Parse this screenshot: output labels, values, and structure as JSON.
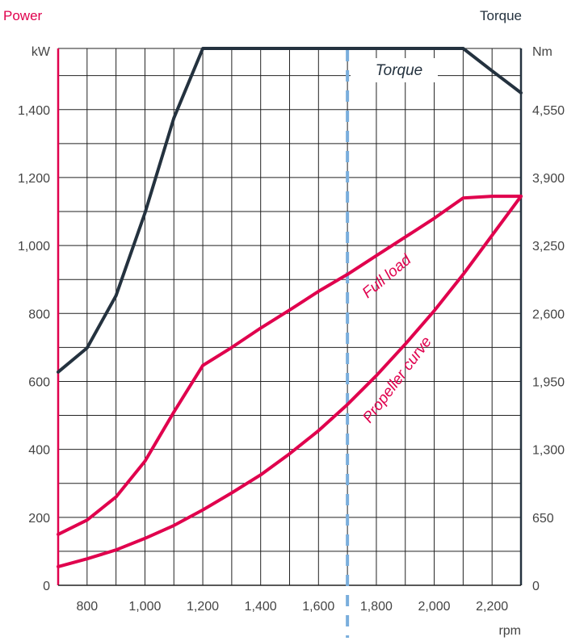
{
  "colors": {
    "power": "#e0004d",
    "torque": "#24323f",
    "marker": "#7aaedc",
    "grid": "#222222",
    "text": "#444444"
  },
  "headers": {
    "left": "Power",
    "right": "Torque",
    "left_unit": "kW",
    "right_unit": "Nm",
    "x_unit": "rpm"
  },
  "chart_data": {
    "type": "line",
    "xlim": [
      700,
      2300
    ],
    "ylim_left": [
      0,
      1580
    ],
    "ylim_right": [
      0,
      5135
    ],
    "grid": true,
    "x_ticks": [
      {
        "value": 800,
        "label": "800"
      },
      {
        "value": 1000,
        "label": "1,000"
      },
      {
        "value": 1200,
        "label": "1,200"
      },
      {
        "value": 1400,
        "label": "1,400"
      },
      {
        "value": 1600,
        "label": "1,600"
      },
      {
        "value": 1800,
        "label": "1,800"
      },
      {
        "value": 2000,
        "label": "2,000"
      },
      {
        "value": 2200,
        "label": "2,200"
      }
    ],
    "y_left_ticks": [
      {
        "value": 0,
        "label": "0"
      },
      {
        "value": 200,
        "label": "200"
      },
      {
        "value": 400,
        "label": "400"
      },
      {
        "value": 600,
        "label": "600"
      },
      {
        "value": 800,
        "label": "800"
      },
      {
        "value": 1000,
        "label": "1,000"
      },
      {
        "value": 1200,
        "label": "1,200"
      },
      {
        "value": 1400,
        "label": "1,400"
      }
    ],
    "y_right_ticks": [
      {
        "value": 0,
        "label": "0"
      },
      {
        "value": 650,
        "label": "650"
      },
      {
        "value": 1300,
        "label": "1,300"
      },
      {
        "value": 1950,
        "label": "1,950"
      },
      {
        "value": 2600,
        "label": "2,600"
      },
      {
        "value": 3250,
        "label": "3,250"
      },
      {
        "value": 3900,
        "label": "3,900"
      },
      {
        "value": 4550,
        "label": "4,550"
      }
    ],
    "marker_line_rpm": 1700,
    "series": [
      {
        "name": "Torque",
        "axis": "right",
        "color_key": "torque",
        "x": [
          700,
          800,
          900,
          1000,
          1100,
          1200,
          1300,
          1400,
          1500,
          1600,
          1700,
          1800,
          1900,
          2000,
          2100,
          2200,
          2300
        ],
        "y": [
          2040,
          2270,
          2770,
          3560,
          4470,
          5135,
          5135,
          5135,
          5135,
          5135,
          5135,
          5135,
          5135,
          5135,
          5135,
          4920,
          4710
        ]
      },
      {
        "name": "Full load",
        "axis": "left",
        "color_key": "power",
        "x": [
          700,
          800,
          900,
          1000,
          1100,
          1200,
          1300,
          1400,
          1500,
          1600,
          1700,
          1800,
          1900,
          2000,
          2100,
          2200,
          2300
        ],
        "y": [
          150,
          192,
          260,
          365,
          510,
          647,
          700,
          757,
          810,
          865,
          915,
          970,
          1025,
          1080,
          1140,
          1145,
          1145
        ]
      },
      {
        "name": "Propeller curve",
        "axis": "left",
        "color_key": "power",
        "x": [
          700,
          800,
          900,
          1000,
          1100,
          1200,
          1300,
          1400,
          1500,
          1600,
          1700,
          1800,
          1900,
          2000,
          2100,
          2200,
          2300
        ],
        "y": [
          55,
          78,
          104,
          138,
          176,
          222,
          272,
          325,
          387,
          455,
          532,
          617,
          710,
          808,
          915,
          1030,
          1145
        ]
      }
    ]
  }
}
